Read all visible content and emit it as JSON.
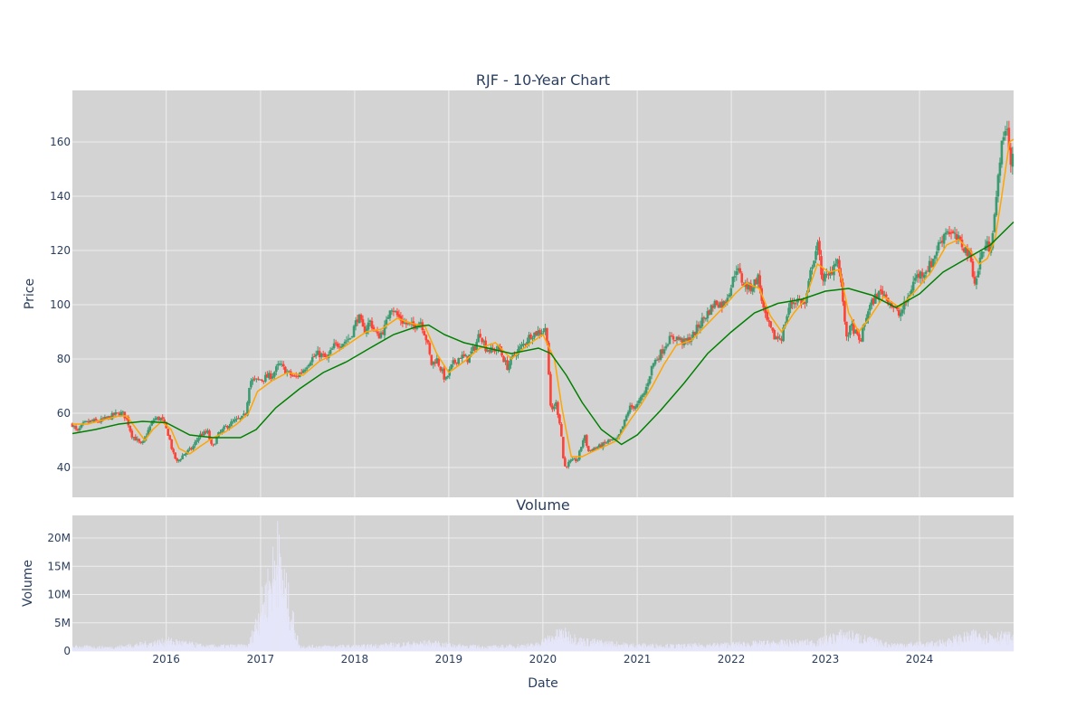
{
  "chart_data": [
    {
      "type": "candlestick",
      "title": "RJF - 10-Year Chart",
      "xlabel": "",
      "ylabel": "Price",
      "ylim": [
        29,
        179
      ],
      "xlim": [
        "2015-01-02",
        "2024-12-31"
      ],
      "y_ticks": [
        40,
        60,
        80,
        100,
        120,
        140,
        160
      ],
      "grid": true,
      "legend": "none",
      "colors": {
        "up": "#3d9970",
        "down": "#ff4136",
        "ma_short": "#ffa500",
        "ma_long": "#008000",
        "plot_bg": "#d3d3d3",
        "grid": "#eeeeee"
      },
      "price_points": [
        [
          "2015-01-02",
          56
        ],
        [
          "2015-01-20",
          53
        ],
        [
          "2015-02-15",
          56
        ],
        [
          "2015-03-15",
          57
        ],
        [
          "2015-04-15",
          57
        ],
        [
          "2015-05-15",
          58
        ],
        [
          "2015-06-15",
          59.5
        ],
        [
          "2015-07-15",
          60
        ],
        [
          "2015-08-01",
          58
        ],
        [
          "2015-08-20",
          52
        ],
        [
          "2015-09-10",
          50
        ],
        [
          "2015-09-28",
          48
        ],
        [
          "2015-10-20",
          53
        ],
        [
          "2015-11-15",
          58
        ],
        [
          "2015-12-15",
          58
        ],
        [
          "2016-01-10",
          52
        ],
        [
          "2016-01-28",
          45
        ],
        [
          "2016-02-12",
          42
        ],
        [
          "2016-03-10",
          45
        ],
        [
          "2016-04-10",
          47
        ],
        [
          "2016-05-10",
          52
        ],
        [
          "2016-06-10",
          53
        ],
        [
          "2016-06-27",
          47
        ],
        [
          "2016-07-20",
          52
        ],
        [
          "2016-08-20",
          55
        ],
        [
          "2016-09-20",
          57
        ],
        [
          "2016-10-20",
          58
        ],
        [
          "2016-11-05",
          60
        ],
        [
          "2016-11-20",
          72
        ],
        [
          "2016-12-15",
          72
        ],
        [
          "2017-01-15",
          73
        ],
        [
          "2017-02-15",
          74
        ],
        [
          "2017-03-15",
          78
        ],
        [
          "2017-04-15",
          75
        ],
        [
          "2017-05-15",
          73
        ],
        [
          "2017-06-15",
          76
        ],
        [
          "2017-07-15",
          80
        ],
        [
          "2017-08-15",
          82
        ],
        [
          "2017-09-15",
          80
        ],
        [
          "2017-10-15",
          85
        ],
        [
          "2017-11-15",
          86
        ],
        [
          "2017-12-15",
          88
        ],
        [
          "2018-01-15",
          96
        ],
        [
          "2018-02-05",
          90
        ],
        [
          "2018-03-01",
          94
        ],
        [
          "2018-04-01",
          88
        ],
        [
          "2018-05-01",
          92
        ],
        [
          "2018-05-20",
          100
        ],
        [
          "2018-06-15",
          96
        ],
        [
          "2018-07-15",
          93
        ],
        [
          "2018-08-15",
          92
        ],
        [
          "2018-09-15",
          94
        ],
        [
          "2018-10-10",
          86
        ],
        [
          "2018-10-25",
          78
        ],
        [
          "2018-11-15",
          80
        ],
        [
          "2018-12-20",
          72
        ],
        [
          "2019-01-15",
          78
        ],
        [
          "2019-02-15",
          81
        ],
        [
          "2019-03-15",
          80
        ],
        [
          "2019-04-15",
          85
        ],
        [
          "2019-05-01",
          90
        ],
        [
          "2019-05-25",
          84
        ],
        [
          "2019-06-15",
          83
        ],
        [
          "2019-07-15",
          84
        ],
        [
          "2019-08-15",
          77
        ],
        [
          "2019-09-15",
          82
        ],
        [
          "2019-10-15",
          85
        ],
        [
          "2019-11-15",
          89
        ],
        [
          "2019-12-15",
          90
        ],
        [
          "2020-01-15",
          91
        ],
        [
          "2020-02-01",
          60
        ],
        [
          "2020-02-20",
          64
        ],
        [
          "2020-03-10",
          55
        ],
        [
          "2020-03-23",
          40
        ],
        [
          "2020-04-15",
          42
        ],
        [
          "2020-05-15",
          43
        ],
        [
          "2020-06-10",
          52
        ],
        [
          "2020-06-25",
          46
        ],
        [
          "2020-07-15",
          47
        ],
        [
          "2020-08-15",
          48
        ],
        [
          "2020-09-15",
          50
        ],
        [
          "2020-10-15",
          50
        ],
        [
          "2020-11-10",
          56
        ],
        [
          "2020-12-01",
          62
        ],
        [
          "2021-01-01",
          63
        ],
        [
          "2021-02-01",
          68
        ],
        [
          "2021-03-01",
          78
        ],
        [
          "2021-04-01",
          82
        ],
        [
          "2021-05-01",
          87
        ],
        [
          "2021-06-01",
          88
        ],
        [
          "2021-07-01",
          86
        ],
        [
          "2021-08-01",
          88
        ],
        [
          "2021-09-01",
          93
        ],
        [
          "2021-10-01",
          97
        ],
        [
          "2021-11-01",
          101
        ],
        [
          "2021-12-01",
          100
        ],
        [
          "2022-01-01",
          107
        ],
        [
          "2022-01-20",
          114
        ],
        [
          "2022-02-15",
          108
        ],
        [
          "2022-03-15",
          106
        ],
        [
          "2022-04-15",
          110
        ],
        [
          "2022-05-10",
          96
        ],
        [
          "2022-06-15",
          88
        ],
        [
          "2022-07-15",
          88
        ],
        [
          "2022-08-15",
          100
        ],
        [
          "2022-09-15",
          102
        ],
        [
          "2022-10-15",
          100
        ],
        [
          "2022-11-10",
          115
        ],
        [
          "2022-12-01",
          122
        ],
        [
          "2022-12-20",
          110
        ],
        [
          "2023-01-15",
          110
        ],
        [
          "2023-02-15",
          118
        ],
        [
          "2023-03-10",
          102
        ],
        [
          "2023-03-20",
          88
        ],
        [
          "2023-04-15",
          92
        ],
        [
          "2023-05-15",
          86
        ],
        [
          "2023-06-15",
          98
        ],
        [
          "2023-07-15",
          103
        ],
        [
          "2023-08-10",
          105
        ],
        [
          "2023-09-15",
          100
        ],
        [
          "2023-10-15",
          96
        ],
        [
          "2023-11-15",
          102
        ],
        [
          "2023-12-15",
          110
        ],
        [
          "2024-01-15",
          112
        ],
        [
          "2024-02-15",
          115
        ],
        [
          "2024-03-15",
          122
        ],
        [
          "2024-04-15",
          128
        ],
        [
          "2024-05-15",
          125
        ],
        [
          "2024-06-15",
          122
        ],
        [
          "2024-07-15",
          118
        ],
        [
          "2024-08-05",
          107
        ],
        [
          "2024-08-25",
          118
        ],
        [
          "2024-09-15",
          122
        ],
        [
          "2024-10-01",
          121
        ],
        [
          "2024-10-25",
          138
        ],
        [
          "2024-11-08",
          155
        ],
        [
          "2024-11-25",
          162
        ],
        [
          "2024-12-01",
          168
        ],
        [
          "2024-12-10",
          162
        ],
        [
          "2024-12-20",
          152
        ],
        [
          "2024-12-31",
          157
        ]
      ],
      "ma_short": [
        [
          "2015-01-02",
          56
        ],
        [
          "2015-03-01",
          56
        ],
        [
          "2015-05-01",
          57.5
        ],
        [
          "2015-07-01",
          59
        ],
        [
          "2015-08-01",
          59
        ],
        [
          "2015-09-01",
          55
        ],
        [
          "2015-10-10",
          50
        ],
        [
          "2015-11-10",
          54
        ],
        [
          "2015-12-15",
          57
        ],
        [
          "2016-01-20",
          54
        ],
        [
          "2016-02-20",
          47
        ],
        [
          "2016-04-01",
          45
        ],
        [
          "2016-05-15",
          48
        ],
        [
          "2016-07-01",
          51
        ],
        [
          "2016-08-15",
          53
        ],
        [
          "2016-10-01",
          56
        ],
        [
          "2016-11-15",
          60
        ],
        [
          "2016-12-20",
          68
        ],
        [
          "2017-02-15",
          72
        ],
        [
          "2017-04-15",
          75
        ],
        [
          "2017-06-15",
          74
        ],
        [
          "2017-08-15",
          79
        ],
        [
          "2017-10-15",
          82
        ],
        [
          "2017-12-15",
          86
        ],
        [
          "2018-02-15",
          90
        ],
        [
          "2018-04-15",
          91
        ],
        [
          "2018-06-15",
          95
        ],
        [
          "2018-08-15",
          93
        ],
        [
          "2018-10-01",
          92
        ],
        [
          "2018-11-15",
          82
        ],
        [
          "2019-01-01",
          75
        ],
        [
          "2019-03-01",
          79
        ],
        [
          "2019-05-01",
          84
        ],
        [
          "2019-07-01",
          86
        ],
        [
          "2019-09-01",
          80
        ],
        [
          "2019-11-01",
          85
        ],
        [
          "2020-01-01",
          89
        ],
        [
          "2020-02-15",
          80
        ],
        [
          "2020-03-15",
          62
        ],
        [
          "2020-04-20",
          44
        ],
        [
          "2020-06-01",
          44
        ],
        [
          "2020-07-15",
          46
        ],
        [
          "2020-09-01",
          48
        ],
        [
          "2020-10-15",
          50
        ],
        [
          "2020-12-01",
          57
        ],
        [
          "2021-01-15",
          63
        ],
        [
          "2021-03-01",
          70
        ],
        [
          "2021-04-15",
          78
        ],
        [
          "2021-06-01",
          85
        ],
        [
          "2021-08-01",
          87
        ],
        [
          "2021-10-01",
          93
        ],
        [
          "2021-12-01",
          99
        ],
        [
          "2022-01-15",
          104
        ],
        [
          "2022-03-01",
          108
        ],
        [
          "2022-04-20",
          106
        ],
        [
          "2022-06-01",
          96
        ],
        [
          "2022-07-15",
          90
        ],
        [
          "2022-09-01",
          97
        ],
        [
          "2022-10-15",
          102
        ],
        [
          "2022-12-01",
          115
        ],
        [
          "2023-01-15",
          112
        ],
        [
          "2023-02-25",
          113
        ],
        [
          "2023-04-01",
          97
        ],
        [
          "2023-05-10",
          90
        ],
        [
          "2023-06-20",
          95
        ],
        [
          "2023-08-15",
          103
        ],
        [
          "2023-10-15",
          99
        ],
        [
          "2023-12-15",
          105
        ],
        [
          "2024-02-15",
          112
        ],
        [
          "2024-04-15",
          122
        ],
        [
          "2024-06-01",
          124
        ],
        [
          "2024-07-15",
          120
        ],
        [
          "2024-08-20",
          115
        ],
        [
          "2024-09-20",
          117
        ],
        [
          "2024-10-20",
          124
        ],
        [
          "2024-11-15",
          140
        ],
        [
          "2024-12-15",
          160
        ],
        [
          "2024-12-31",
          161
        ]
      ],
      "ma_long": [
        [
          "2015-01-02",
          52.5
        ],
        [
          "2015-04-01",
          54
        ],
        [
          "2015-07-01",
          56
        ],
        [
          "2015-10-01",
          57
        ],
        [
          "2016-01-01",
          56.5
        ],
        [
          "2016-04-01",
          52
        ],
        [
          "2016-07-01",
          51
        ],
        [
          "2016-10-15",
          51
        ],
        [
          "2016-12-15",
          54
        ],
        [
          "2017-03-01",
          62
        ],
        [
          "2017-06-01",
          69
        ],
        [
          "2017-09-01",
          75
        ],
        [
          "2017-12-01",
          79
        ],
        [
          "2018-03-01",
          84
        ],
        [
          "2018-06-01",
          89
        ],
        [
          "2018-09-01",
          92
        ],
        [
          "2018-10-15",
          92.5
        ],
        [
          "2018-12-15",
          89
        ],
        [
          "2019-03-01",
          86
        ],
        [
          "2019-06-01",
          84
        ],
        [
          "2019-09-01",
          82
        ],
        [
          "2019-12-15",
          84
        ],
        [
          "2020-02-01",
          82
        ],
        [
          "2020-04-01",
          74
        ],
        [
          "2020-06-01",
          64
        ],
        [
          "2020-08-15",
          54
        ],
        [
          "2020-11-01",
          48.5
        ],
        [
          "2021-01-01",
          52
        ],
        [
          "2021-04-01",
          61
        ],
        [
          "2021-07-01",
          71
        ],
        [
          "2021-10-01",
          82
        ],
        [
          "2022-01-01",
          90
        ],
        [
          "2022-04-01",
          97
        ],
        [
          "2022-07-01",
          100.5
        ],
        [
          "2022-10-01",
          102
        ],
        [
          "2023-01-01",
          105
        ],
        [
          "2023-04-01",
          106
        ],
        [
          "2023-07-01",
          103.5
        ],
        [
          "2023-10-01",
          99
        ],
        [
          "2024-01-01",
          104
        ],
        [
          "2024-04-01",
          112
        ],
        [
          "2024-07-01",
          117
        ],
        [
          "2024-10-01",
          122
        ],
        [
          "2024-12-31",
          130.5
        ]
      ]
    },
    {
      "type": "bar",
      "title": "Volume",
      "xlabel": "Date",
      "ylabel": "Volume",
      "ylim": [
        0,
        24000000
      ],
      "y_ticks": [
        {
          "value": 0,
          "label": "0"
        },
        {
          "value": 5000000,
          "label": "5M"
        },
        {
          "value": 10000000,
          "label": "10M"
        },
        {
          "value": 15000000,
          "label": "15M"
        },
        {
          "value": 20000000,
          "label": "20M"
        }
      ],
      "x_ticks": [
        "2016",
        "2017",
        "2018",
        "2019",
        "2020",
        "2021",
        "2022",
        "2023",
        "2024"
      ],
      "grid": true,
      "colors": {
        "bars": "#e6e6fa",
        "plot_bg": "#d3d3d3"
      },
      "volume_points": [
        [
          "2015-01-02",
          1100000
        ],
        [
          "2015-06-01",
          900000
        ],
        [
          "2015-09-01",
          1500000
        ],
        [
          "2016-01-15",
          2500000
        ],
        [
          "2016-06-01",
          1200000
        ],
        [
          "2016-11-15",
          1300000
        ],
        [
          "2017-03-08",
          23000000
        ],
        [
          "2017-06-01",
          1100000
        ],
        [
          "2018-02-01",
          1200000
        ],
        [
          "2018-10-20",
          2000000
        ],
        [
          "2019-01-01",
          1500000
        ],
        [
          "2019-06-01",
          1000000
        ],
        [
          "2019-12-01",
          1500000
        ],
        [
          "2020-03-15",
          4500000
        ],
        [
          "2020-06-01",
          2500000
        ],
        [
          "2020-12-01",
          1500000
        ],
        [
          "2021-06-01",
          1300000
        ],
        [
          "2021-12-01",
          1600000
        ],
        [
          "2022-06-01",
          2000000
        ],
        [
          "2022-12-01",
          2200000
        ],
        [
          "2023-03-15",
          4200000
        ],
        [
          "2023-09-01",
          1600000
        ],
        [
          "2024-03-01",
          1800000
        ],
        [
          "2024-08-05",
          4000000
        ],
        [
          "2024-12-20",
          3500000
        ]
      ]
    }
  ]
}
